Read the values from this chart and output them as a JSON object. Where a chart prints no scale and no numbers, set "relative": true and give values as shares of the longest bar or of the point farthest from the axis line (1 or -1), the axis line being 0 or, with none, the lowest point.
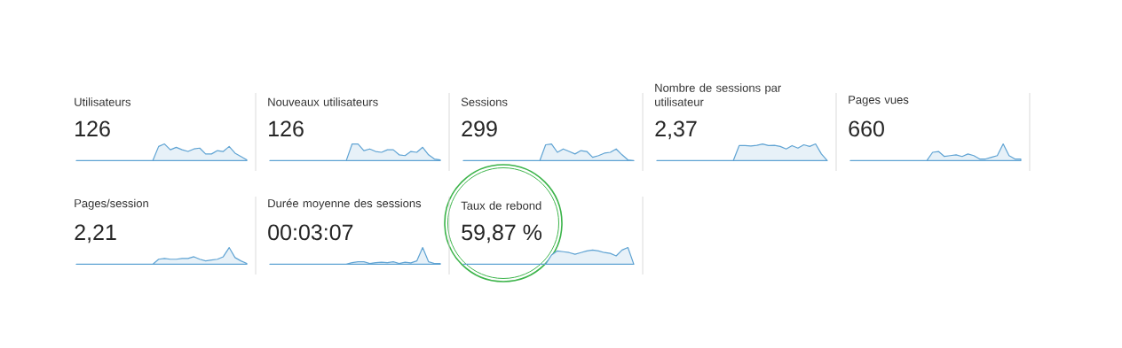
{
  "chart_data": [
    {
      "type": "area",
      "relative": true,
      "title": "Utilisateurs",
      "subtitle": "126",
      "color": "#5fa3d3",
      "categories": [
        null,
        null,
        null,
        null,
        null,
        null,
        null,
        null,
        null,
        null,
        null,
        null,
        null,
        null,
        null,
        null,
        null,
        null,
        null,
        null,
        null,
        null,
        null,
        null,
        null,
        null,
        null,
        null,
        null,
        null
      ],
      "values": [
        0,
        0,
        0,
        0,
        0,
        0,
        0,
        0,
        0,
        0,
        0,
        0,
        0,
        0,
        0.85,
        1.0,
        0.65,
        0.8,
        0.65,
        0.55,
        0.7,
        0.75,
        0.4,
        0.4,
        0.6,
        0.55,
        0.85,
        0.45,
        0.25,
        0.05
      ]
    },
    {
      "type": "area",
      "relative": true,
      "title": "Nouveaux utilisateurs",
      "subtitle": "126",
      "color": "#5fa3d3",
      "categories": [
        null,
        null,
        null,
        null,
        null,
        null,
        null,
        null,
        null,
        null,
        null,
        null,
        null,
        null,
        null,
        null,
        null,
        null,
        null,
        null,
        null,
        null,
        null,
        null,
        null,
        null,
        null,
        null,
        null,
        null
      ],
      "values": [
        0,
        0,
        0,
        0,
        0,
        0,
        0,
        0,
        0,
        0,
        0,
        0,
        0,
        0,
        1.0,
        1.0,
        0.6,
        0.7,
        0.55,
        0.5,
        0.65,
        0.65,
        0.35,
        0.3,
        0.55,
        0.5,
        0.8,
        0.35,
        0.1,
        0.05
      ]
    },
    {
      "type": "area",
      "relative": true,
      "title": "Sessions",
      "subtitle": "299",
      "color": "#5fa3d3",
      "categories": [
        null,
        null,
        null,
        null,
        null,
        null,
        null,
        null,
        null,
        null,
        null,
        null,
        null,
        null,
        null,
        null,
        null,
        null,
        null,
        null,
        null,
        null,
        null,
        null,
        null,
        null,
        null,
        null,
        null,
        null
      ],
      "values": [
        0,
        0,
        0,
        0,
        0,
        0,
        0,
        0,
        0,
        0,
        0,
        0,
        0,
        0,
        0.95,
        1.0,
        0.5,
        0.7,
        0.55,
        0.4,
        0.6,
        0.55,
        0.2,
        0.3,
        0.45,
        0.5,
        0.7,
        0.35,
        0.05,
        0
      ]
    },
    {
      "type": "area",
      "relative": true,
      "title": "Nombre de sessions par utilisateur",
      "subtitle": "2,37",
      "color": "#5fa3d3",
      "categories": [
        null,
        null,
        null,
        null,
        null,
        null,
        null,
        null,
        null,
        null,
        null,
        null,
        null,
        null,
        null,
        null,
        null,
        null,
        null,
        null,
        null,
        null,
        null,
        null,
        null,
        null,
        null,
        null,
        null,
        null
      ],
      "values": [
        0,
        0,
        0,
        0,
        0,
        0,
        0,
        0,
        0,
        0,
        0,
        0,
        0,
        0,
        0.9,
        0.9,
        0.88,
        0.92,
        1.0,
        0.9,
        0.92,
        0.85,
        0.7,
        0.9,
        0.75,
        0.95,
        0.85,
        1.0,
        0.4,
        0
      ]
    },
    {
      "type": "area",
      "relative": true,
      "title": "Pages vues",
      "subtitle": "660",
      "color": "#5fa3d3",
      "categories": [
        null,
        null,
        null,
        null,
        null,
        null,
        null,
        null,
        null,
        null,
        null,
        null,
        null,
        null,
        null,
        null,
        null,
        null,
        null,
        null,
        null,
        null,
        null,
        null,
        null,
        null,
        null,
        null,
        null,
        null
      ],
      "values": [
        0,
        0,
        0,
        0,
        0,
        0,
        0,
        0,
        0,
        0,
        0,
        0,
        0,
        0,
        0.5,
        0.55,
        0.25,
        0.3,
        0.35,
        0.25,
        0.4,
        0.3,
        0.1,
        0.1,
        0.2,
        0.3,
        1.0,
        0.3,
        0.1,
        0.1
      ]
    },
    {
      "type": "area",
      "relative": true,
      "title": "Pages/session",
      "subtitle": "2,21",
      "color": "#5fa3d3",
      "categories": [
        null,
        null,
        null,
        null,
        null,
        null,
        null,
        null,
        null,
        null,
        null,
        null,
        null,
        null,
        null,
        null,
        null,
        null,
        null,
        null,
        null,
        null,
        null,
        null,
        null,
        null,
        null,
        null,
        null,
        null
      ],
      "values": [
        0,
        0,
        0,
        0,
        0,
        0,
        0,
        0,
        0,
        0,
        0,
        0,
        0,
        0,
        0.3,
        0.35,
        0.3,
        0.3,
        0.35,
        0.35,
        0.45,
        0.3,
        0.2,
        0.25,
        0.3,
        0.45,
        1.0,
        0.4,
        0.2,
        0.05
      ]
    },
    {
      "type": "area",
      "relative": true,
      "title": "Durée moyenne des sessions",
      "subtitle": "00:03:07",
      "color": "#5fa3d3",
      "categories": [
        null,
        null,
        null,
        null,
        null,
        null,
        null,
        null,
        null,
        null,
        null,
        null,
        null,
        null,
        null,
        null,
        null,
        null,
        null,
        null,
        null,
        null,
        null,
        null,
        null,
        null,
        null,
        null,
        null,
        null
      ],
      "values": [
        0,
        0,
        0,
        0,
        0,
        0,
        0,
        0,
        0,
        0,
        0,
        0,
        0,
        0,
        0.1,
        0.15,
        0.15,
        0.05,
        0.1,
        0.12,
        0.1,
        0.15,
        0.05,
        0.12,
        0.08,
        0.2,
        1.0,
        0.15,
        0.05,
        0.05
      ]
    },
    {
      "type": "area",
      "relative": true,
      "title": "Taux de rebond",
      "subtitle": "59,87 %",
      "color": "#5fa3d3",
      "categories": [
        null,
        null,
        null,
        null,
        null,
        null,
        null,
        null,
        null,
        null,
        null,
        null,
        null,
        null,
        null,
        null,
        null,
        null,
        null,
        null,
        null,
        null,
        null,
        null,
        null,
        null,
        null,
        null,
        null,
        null
      ],
      "values": [
        0,
        0,
        0,
        0,
        0,
        0,
        0,
        0,
        0,
        0,
        0,
        0,
        0,
        0,
        0,
        0.55,
        0.8,
        0.75,
        0.7,
        0.6,
        0.7,
        0.8,
        0.85,
        0.8,
        0.7,
        0.65,
        0.5,
        0.85,
        1.0,
        0
      ]
    }
  ]
}
